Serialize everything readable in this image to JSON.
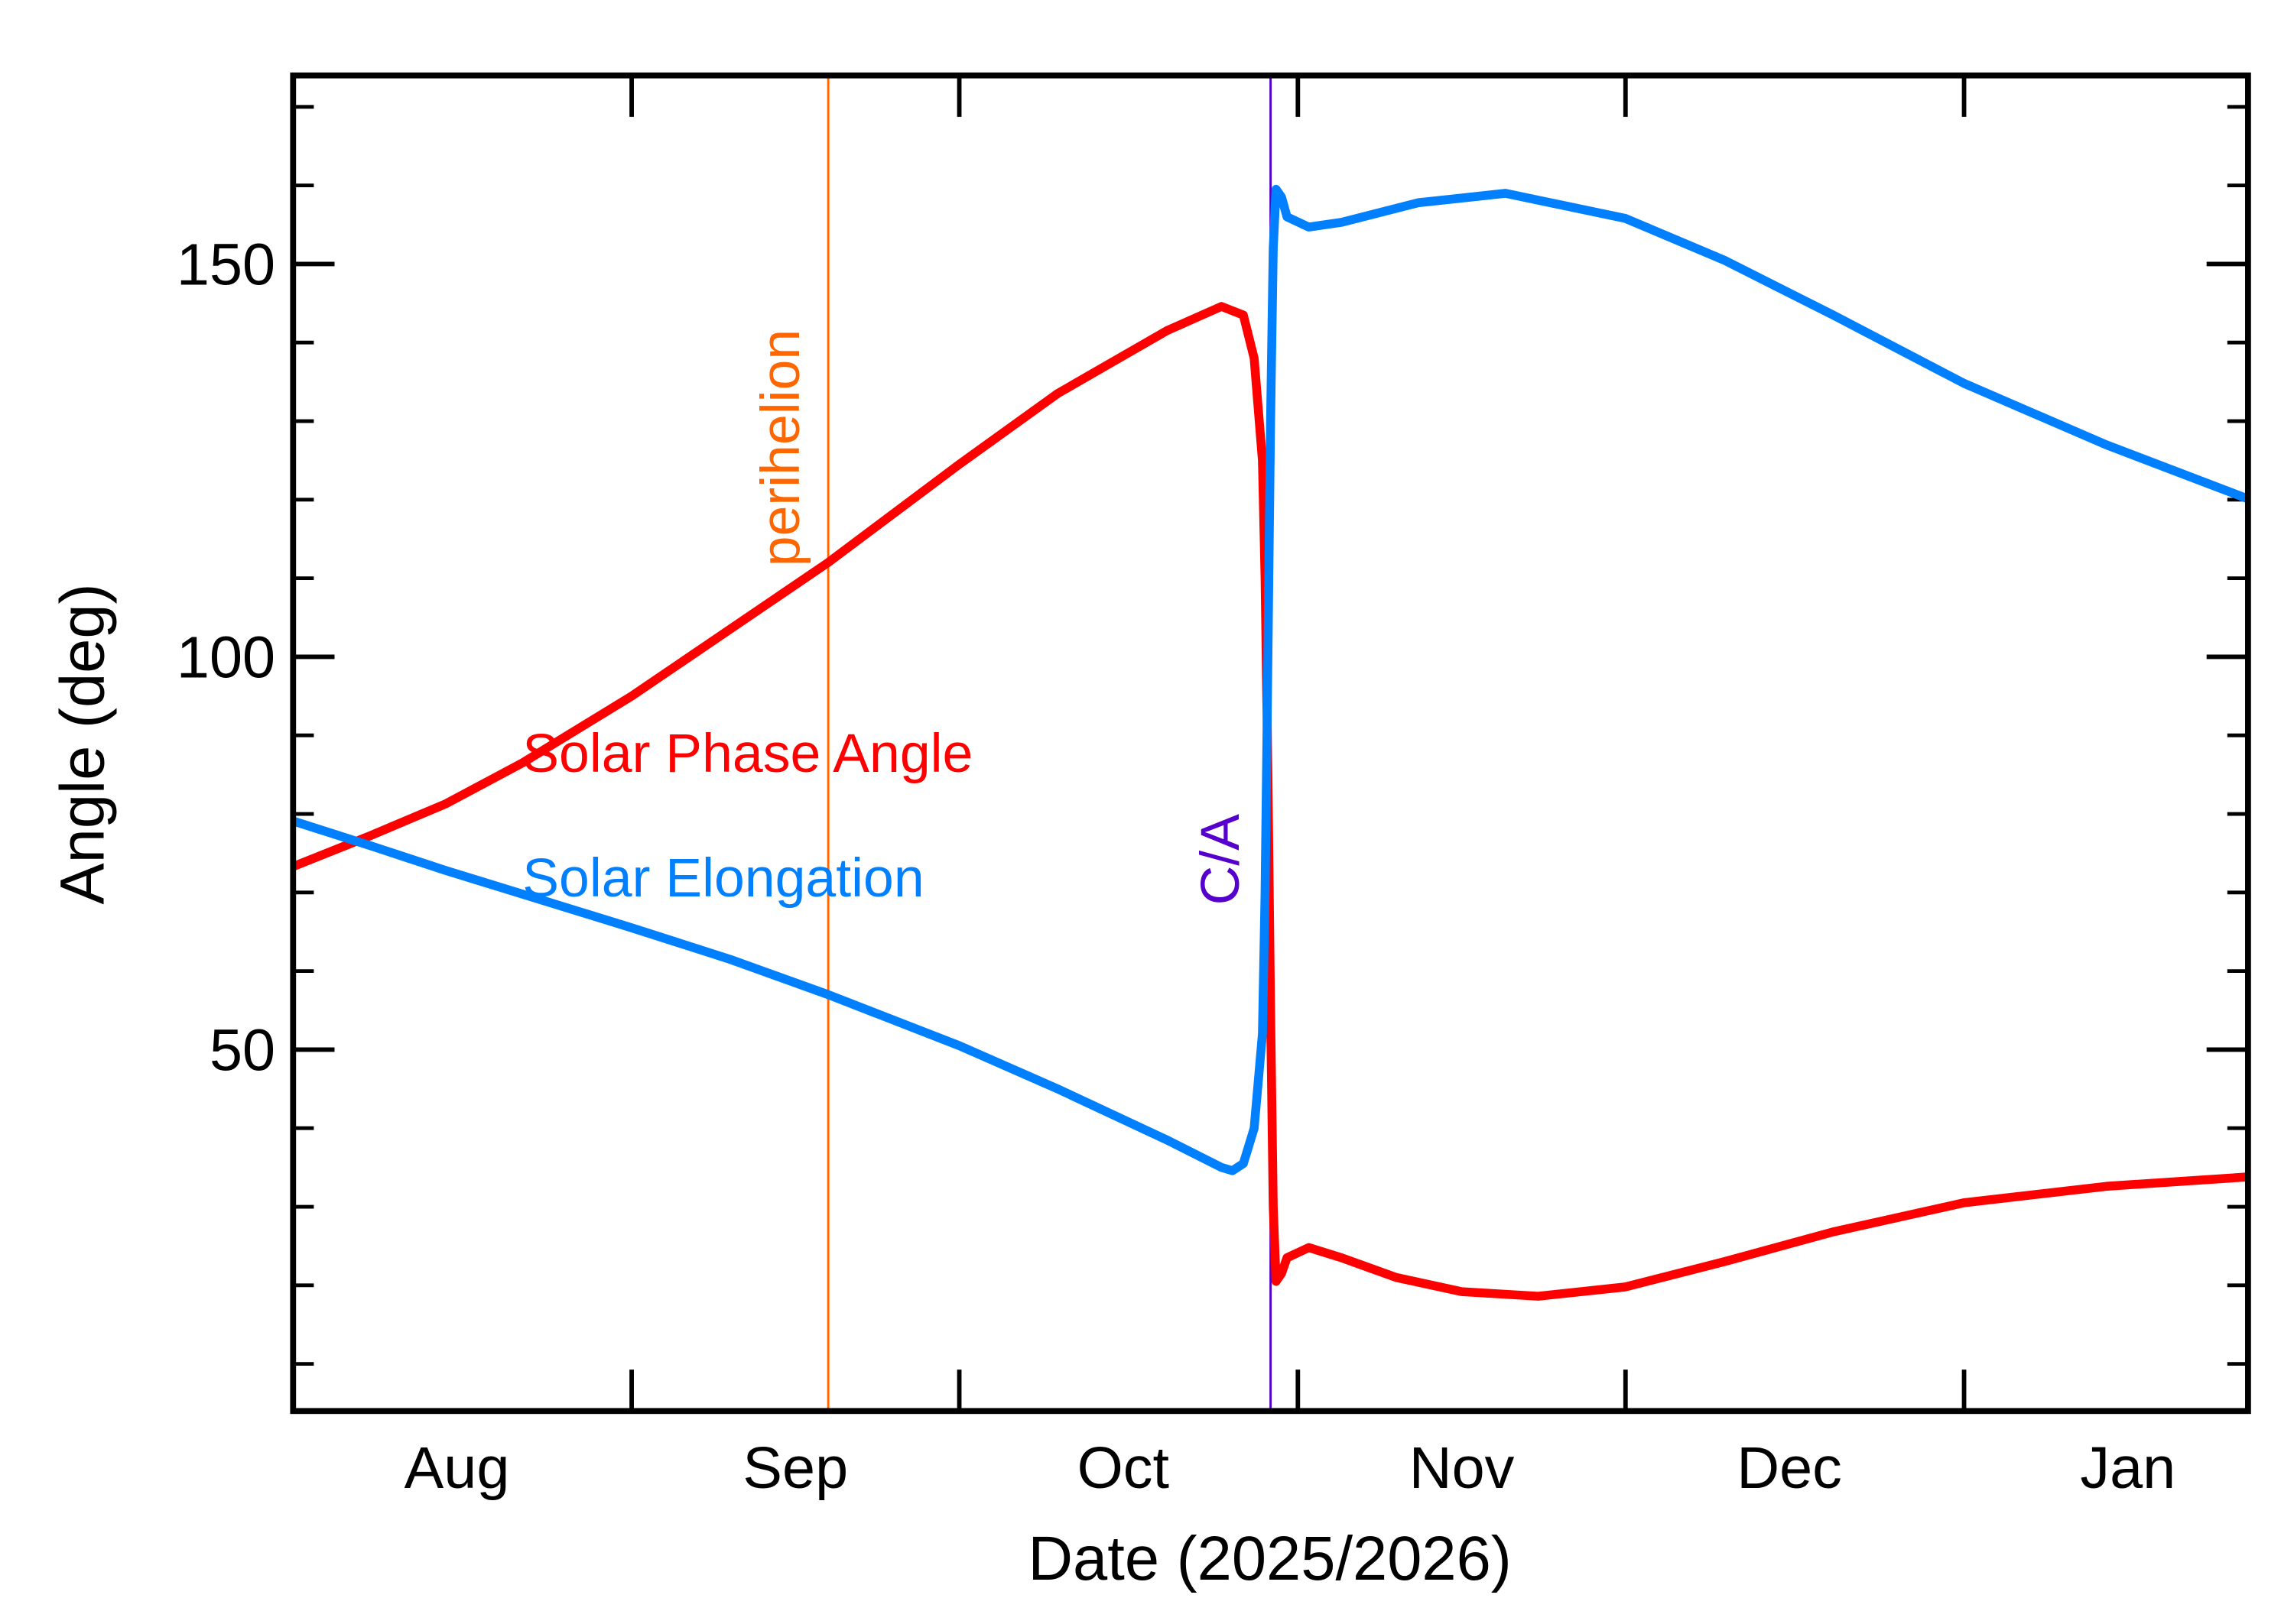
{
  "chart_data": {
    "type": "line",
    "title": "",
    "xlabel": "Date (2025/2026)",
    "ylabel": "Angle (deg)",
    "xlim": [
      "2025-08-01",
      "2026-01-27"
    ],
    "ylim": [
      4,
      174
    ],
    "x_tick_labels": [
      {
        "label": "Aug",
        "date": "2025-08-16"
      },
      {
        "label": "Sep",
        "date": "2025-09-16"
      },
      {
        "label": "Oct",
        "date": "2025-10-16"
      },
      {
        "label": "Nov",
        "date": "2025-11-16"
      },
      {
        "label": "Dec",
        "date": "2025-12-16"
      },
      {
        "label": "Jan",
        "date": "2026-01-16"
      }
    ],
    "x_major_ticks": [
      "2025-09-01",
      "2025-10-01",
      "2025-11-01",
      "2025-12-01",
      "2026-01-01"
    ],
    "y_ticks": [
      50,
      100,
      150
    ],
    "y_minor_step": 10,
    "grid": false,
    "markers": [
      {
        "label": "perihelion",
        "date": "2025-09-19",
        "color": "#ff6600"
      },
      {
        "label": "C/A",
        "date": "2025-10-29T12:00",
        "color": "#5500cc"
      }
    ],
    "series": [
      {
        "name": "Solar Phase Angle",
        "color": "#ff0000",
        "points": [
          [
            "2025-08-01",
            73.3
          ],
          [
            "2025-08-08",
            77.2
          ],
          [
            "2025-08-15",
            81.3
          ],
          [
            "2025-08-22",
            86.5
          ],
          [
            "2025-09-01",
            95.0
          ],
          [
            "2025-09-10",
            103.5
          ],
          [
            "2025-09-19",
            112.0
          ],
          [
            "2025-10-01",
            124.5
          ],
          [
            "2025-10-10",
            133.5
          ],
          [
            "2025-10-20",
            141.5
          ],
          [
            "2025-10-25",
            144.6
          ],
          [
            "2025-10-27",
            143.5
          ],
          [
            "2025-10-28",
            138.0
          ],
          [
            "2025-10-28T18:00",
            125.0
          ],
          [
            "2025-10-29",
            110.0
          ],
          [
            "2025-10-29T06:00",
            85.0
          ],
          [
            "2025-10-29T12:00",
            55.0
          ],
          [
            "2025-10-29T18:00",
            30.0
          ],
          [
            "2025-10-30",
            20.5
          ],
          [
            "2025-10-30T12:00",
            21.5
          ],
          [
            "2025-10-31",
            23.5
          ],
          [
            "2025-11-02",
            24.8
          ],
          [
            "2025-11-05",
            23.5
          ],
          [
            "2025-11-10",
            21.0
          ],
          [
            "2025-11-16",
            19.2
          ],
          [
            "2025-11-23",
            18.6
          ],
          [
            "2025-12-01",
            19.8
          ],
          [
            "2025-12-10",
            23.0
          ],
          [
            "2025-12-20",
            26.8
          ],
          [
            "2026-01-01",
            30.5
          ],
          [
            "2026-01-14",
            32.6
          ],
          [
            "2026-01-27",
            33.8
          ]
        ]
      },
      {
        "name": "Solar Elongation",
        "color": "#0080ff",
        "points": [
          [
            "2025-08-01",
            79.1
          ],
          [
            "2025-08-08",
            76.0
          ],
          [
            "2025-08-15",
            72.8
          ],
          [
            "2025-08-22",
            69.8
          ],
          [
            "2025-09-01",
            65.5
          ],
          [
            "2025-09-10",
            61.5
          ],
          [
            "2025-09-19",
            57.0
          ],
          [
            "2025-10-01",
            50.5
          ],
          [
            "2025-10-10",
            45.0
          ],
          [
            "2025-10-20",
            38.5
          ],
          [
            "2025-10-25",
            35.0
          ],
          [
            "2025-10-26",
            34.6
          ],
          [
            "2025-10-27",
            35.5
          ],
          [
            "2025-10-28",
            40.0
          ],
          [
            "2025-10-28T18:00",
            52.0
          ],
          [
            "2025-10-29",
            70.0
          ],
          [
            "2025-10-29T06:00",
            100.0
          ],
          [
            "2025-10-29T12:00",
            130.0
          ],
          [
            "2025-10-29T18:00",
            152.0
          ],
          [
            "2025-10-30",
            159.5
          ],
          [
            "2025-10-30T12:00",
            158.5
          ],
          [
            "2025-10-31",
            156.0
          ],
          [
            "2025-11-02",
            154.7
          ],
          [
            "2025-11-05",
            155.3
          ],
          [
            "2025-11-12",
            157.8
          ],
          [
            "2025-11-20",
            159.0
          ],
          [
            "2025-12-01",
            155.8
          ],
          [
            "2025-12-10",
            150.5
          ],
          [
            "2025-12-20",
            143.5
          ],
          [
            "2026-01-01",
            134.8
          ],
          [
            "2026-01-14",
            127.0
          ],
          [
            "2026-01-27",
            120.1
          ]
        ]
      }
    ]
  }
}
